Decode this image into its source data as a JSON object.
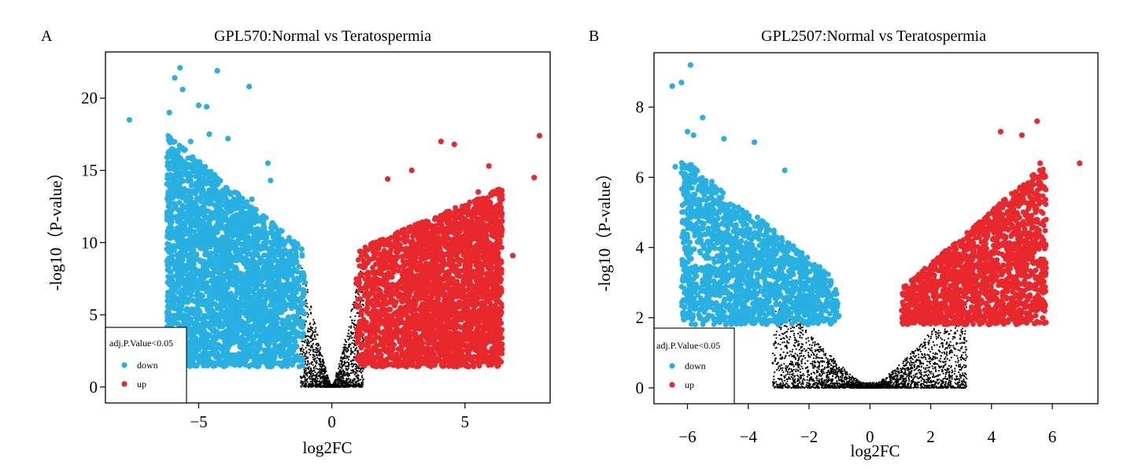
{
  "chart_data": [
    {
      "type": "scatter",
      "panel": "A",
      "title": "GPL570:Normal vs Teratospermia",
      "xlabel": "log2FC",
      "ylabel": "-log10（P-value）",
      "xlim": [
        -8.5,
        8.2
      ],
      "ylim": [
        -1.1,
        23.2
      ],
      "xticks": [
        "-5",
        "0",
        "5"
      ],
      "xtick_values": [
        -5,
        0,
        5
      ],
      "yticks": [
        "0",
        "5",
        "10",
        "15",
        "20"
      ],
      "ytick_values": [
        0,
        5,
        10,
        15,
        20
      ],
      "grid": false,
      "legend_position": "bottom-left",
      "legend": {
        "title": "adj.P.Value<0.05",
        "items": [
          {
            "label": "down",
            "color": "#29b0e3"
          },
          {
            "label": "up",
            "color": "#e8282d"
          }
        ]
      },
      "series": [
        {
          "group": "down",
          "color": "#29b0e3",
          "points": [
            [
              -7.6,
              18.5
            ],
            [
              -5.7,
              22.1
            ],
            [
              -4.3,
              21.9
            ],
            [
              -3.1,
              20.8
            ],
            [
              -5.9,
              21.4
            ],
            [
              -5.6,
              20.6
            ],
            [
              -5.0,
              19.5
            ],
            [
              -6.1,
              19.0
            ],
            [
              -4.7,
              19.4
            ],
            [
              -5.3,
              17.0
            ],
            [
              -4.6,
              17.5
            ],
            [
              -3.9,
              17.2
            ],
            [
              -2.4,
              15.5
            ],
            [
              -2.3,
              14.3
            ],
            [
              -5.8,
              11.8
            ],
            [
              -4.7,
              8.0
            ],
            [
              -4.4,
              7.4
            ],
            [
              -3.0,
              13.0
            ],
            [
              -4.2,
              6.8
            ]
          ],
          "cloud": {
            "x_from": -6.2,
            "x_to": -1.0,
            "y_bottom": 1.4,
            "y_top_at_x_from": 17.5,
            "y_top_at_x_to": 9.5,
            "count": 3200
          }
        },
        {
          "group": "up",
          "color": "#e8282d",
          "points": [
            [
              7.8,
              17.4
            ],
            [
              4.1,
              17.0
            ],
            [
              4.6,
              16.8
            ],
            [
              5.9,
              15.3
            ],
            [
              7.6,
              14.5
            ],
            [
              2.1,
              14.4
            ],
            [
              3.0,
              15.0
            ],
            [
              6.8,
              9.1
            ],
            [
              6.4,
              13.0
            ],
            [
              5.5,
              13.5
            ]
          ],
          "cloud": {
            "x_from": 0.9,
            "x_to": 6.4,
            "y_bottom": 1.4,
            "y_top_at_x_from": 9.5,
            "y_top_at_x_to": 13.8,
            "count": 3200
          }
        },
        {
          "group": "ns",
          "color": "#000000",
          "cloud": {
            "x_from": -1.2,
            "x_to": 1.2,
            "y_bottom": 0.0,
            "y_top": 9.5,
            "count": 1400
          }
        }
      ]
    },
    {
      "type": "scatter",
      "panel": "B",
      "title": "GPL2507:Normal vs Teratospermia",
      "xlabel": "log2FC",
      "ylabel": "-log10（P-value）",
      "xlim": [
        -7.1,
        7.5
      ],
      "ylim": [
        -0.45,
        9.55
      ],
      "xticks": [
        "-6",
        "-4",
        "-2",
        "0",
        "2",
        "4",
        "6"
      ],
      "xtick_values": [
        -6,
        -4,
        -2,
        0,
        2,
        4,
        6
      ],
      "yticks": [
        "0",
        "2",
        "4",
        "6",
        "8"
      ],
      "ytick_values": [
        0,
        2,
        4,
        6,
        8
      ],
      "grid": false,
      "legend_position": "bottom-left",
      "legend": {
        "title": "adj.P.Value<0.05",
        "items": [
          {
            "label": "down",
            "color": "#29b0e3"
          },
          {
            "label": "up",
            "color": "#e8282d"
          }
        ]
      },
      "series": [
        {
          "group": "down",
          "color": "#29b0e3",
          "points": [
            [
              -5.9,
              9.2
            ],
            [
              -6.5,
              8.6
            ],
            [
              -6.2,
              8.7
            ],
            [
              -5.5,
              7.7
            ],
            [
              -6.0,
              7.3
            ],
            [
              -5.8,
              7.2
            ],
            [
              -6.4,
              6.3
            ],
            [
              -4.8,
              7.1
            ],
            [
              -6.0,
              4.8
            ],
            [
              -5.3,
              3.9
            ],
            [
              -5.7,
              4.5
            ],
            [
              -3.8,
              7.0
            ],
            [
              -2.8,
              6.2
            ]
          ],
          "cloud": {
            "x_from": -6.2,
            "x_to": -1.0,
            "y_bottom": 1.8,
            "y_top_at_x_from": 6.6,
            "y_top_at_x_to": 3.0,
            "count": 1700
          }
        },
        {
          "group": "up",
          "color": "#e8282d",
          "points": [
            [
              6.9,
              6.4
            ],
            [
              5.5,
              7.6
            ],
            [
              5.0,
              7.2
            ],
            [
              4.3,
              7.3
            ],
            [
              5.6,
              6.4
            ],
            [
              5.7,
              3.5
            ],
            [
              5.6,
              3.1
            ],
            [
              4.9,
              2.4
            ],
            [
              4.1,
              1.9
            ]
          ],
          "cloud": {
            "x_from": 1.0,
            "x_to": 5.8,
            "y_bottom": 1.8,
            "y_top_at_x_from": 2.8,
            "y_top_at_x_to": 6.4,
            "count": 1700
          }
        },
        {
          "group": "ns",
          "color": "#000000",
          "cloud": {
            "x_from": -3.2,
            "x_to": 3.2,
            "y_bottom": 0.0,
            "y_top": 2.8,
            "count": 2600
          }
        }
      ]
    }
  ]
}
